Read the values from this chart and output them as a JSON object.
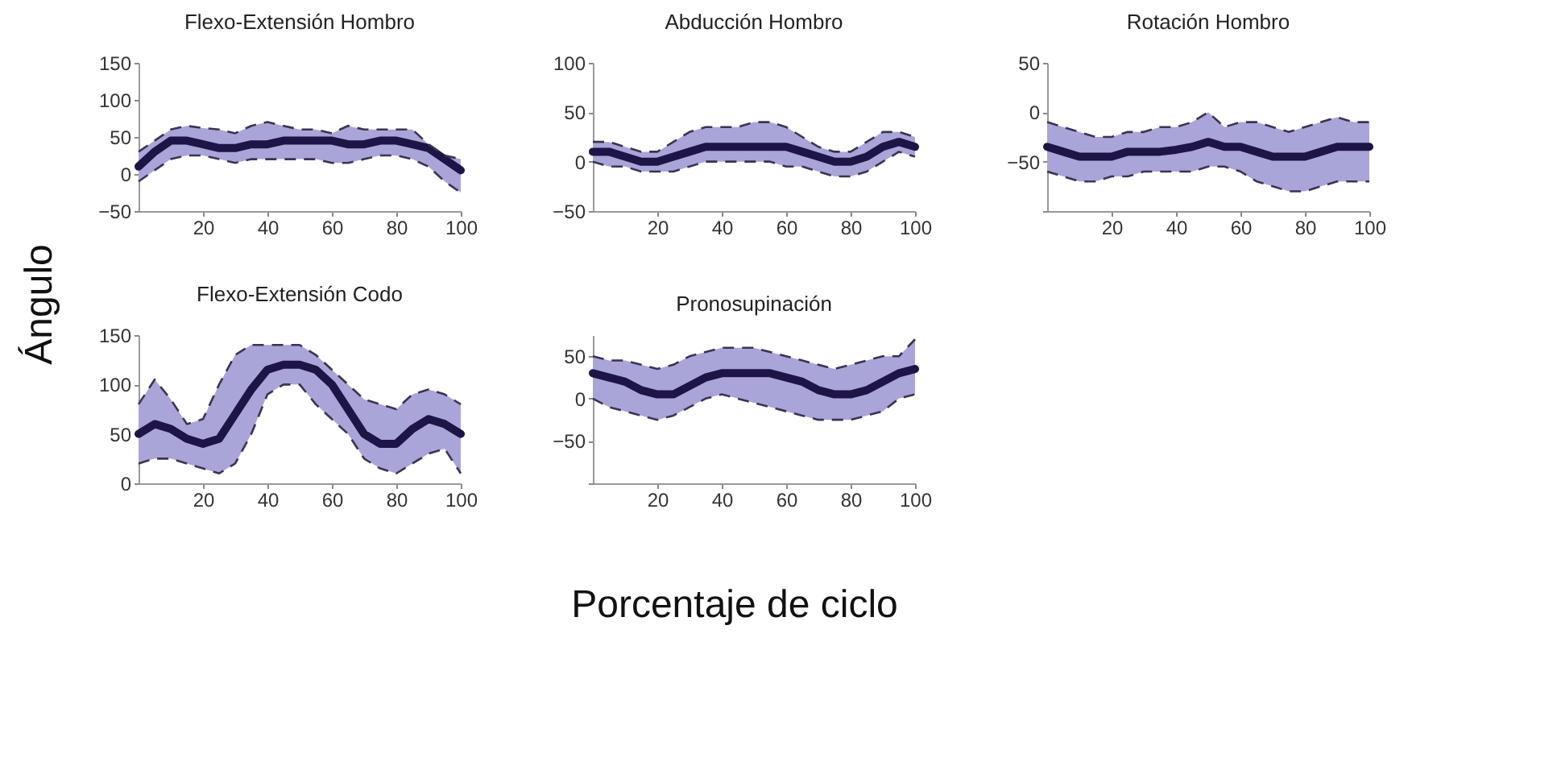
{
  "chart_data": [
    {
      "type": "line",
      "title": "Flexo-Extensión Hombro",
      "ylabel": "Ángulo",
      "x": [
        0,
        5,
        10,
        15,
        20,
        25,
        30,
        35,
        40,
        45,
        50,
        55,
        60,
        65,
        70,
        75,
        80,
        85,
        90,
        95,
        100
      ],
      "xlim": [
        0,
        100
      ],
      "xticks": [
        20,
        40,
        60,
        80,
        100
      ],
      "ylim": [
        -50,
        150
      ],
      "yticks": [
        -50,
        0,
        50,
        100,
        150
      ],
      "grid": false,
      "series": [
        {
          "color": "#1c1545",
          "values": [
            10,
            30,
            45,
            45,
            40,
            35,
            35,
            40,
            40,
            45,
            45,
            45,
            45,
            40,
            40,
            45,
            45,
            40,
            35,
            20,
            5
          ],
          "lower": [
            -10,
            5,
            20,
            25,
            25,
            20,
            15,
            20,
            20,
            20,
            20,
            20,
            15,
            15,
            20,
            25,
            25,
            20,
            10,
            -10,
            -25
          ],
          "upper": [
            30,
            45,
            60,
            65,
            62,
            60,
            55,
            65,
            70,
            65,
            60,
            60,
            55,
            65,
            60,
            60,
            60,
            60,
            40,
            25,
            20
          ]
        },
        {
          "color": "#3a3450",
          "line_style": "dashed",
          "values": [
            -10,
            5,
            20,
            25,
            25,
            20,
            15,
            20,
            20,
            20,
            20,
            20,
            15,
            15,
            20,
            25,
            25,
            20,
            10,
            -10,
            -25
          ]
        },
        {
          "color": "#3a3450",
          "line_style": "dashed",
          "values": [
            30,
            45,
            60,
            65,
            62,
            60,
            55,
            65,
            70,
            65,
            60,
            60,
            55,
            65,
            60,
            60,
            60,
            60,
            40,
            25,
            20
          ]
        }
      ]
    },
    {
      "type": "line",
      "title": "Abducción Hombro",
      "x": [
        0,
        5,
        10,
        15,
        20,
        25,
        30,
        35,
        40,
        45,
        50,
        55,
        60,
        65,
        70,
        75,
        80,
        85,
        90,
        95,
        100
      ],
      "xlim": [
        0,
        100
      ],
      "xticks": [
        20,
        40,
        60,
        80,
        100
      ],
      "ylim": [
        -50,
        100
      ],
      "yticks": [
        -50,
        0,
        50,
        100
      ],
      "grid": false,
      "series": [
        {
          "color": "#1c1545",
          "values": [
            10,
            10,
            5,
            0,
            0,
            5,
            10,
            15,
            15,
            15,
            15,
            15,
            15,
            10,
            5,
            0,
            0,
            5,
            15,
            20,
            15
          ],
          "lower": [
            0,
            -5,
            -5,
            -10,
            -10,
            -10,
            -5,
            0,
            0,
            0,
            0,
            0,
            -5,
            -5,
            -10,
            -15,
            -15,
            -10,
            0,
            10,
            5
          ],
          "upper": [
            20,
            20,
            15,
            10,
            10,
            20,
            30,
            35,
            35,
            35,
            40,
            40,
            35,
            25,
            15,
            10,
            10,
            20,
            30,
            30,
            25
          ]
        },
        {
          "color": "#3a3450",
          "line_style": "dashed",
          "values": [
            0,
            -5,
            -5,
            -10,
            -10,
            -10,
            -5,
            0,
            0,
            0,
            0,
            0,
            -5,
            -5,
            -10,
            -15,
            -15,
            -10,
            0,
            10,
            5
          ]
        },
        {
          "color": "#3a3450",
          "line_style": "dashed",
          "values": [
            20,
            20,
            15,
            10,
            10,
            20,
            30,
            35,
            35,
            35,
            40,
            40,
            35,
            25,
            15,
            10,
            10,
            20,
            30,
            30,
            25
          ]
        }
      ]
    },
    {
      "type": "line",
      "title": "Rotación Hombro",
      "x": [
        0,
        5,
        10,
        15,
        20,
        25,
        30,
        35,
        40,
        45,
        50,
        55,
        60,
        65,
        70,
        75,
        80,
        85,
        90,
        95,
        100
      ],
      "xlim": [
        0,
        100
      ],
      "xticks": [
        20,
        40,
        60,
        80,
        100
      ],
      "ylim": [
        -100,
        50
      ],
      "yticks": [
        {
          "value": -100,
          "label": null
        },
        -50,
        0,
        50
      ],
      "grid": false,
      "series": [
        {
          "color": "#1c1545",
          "values": [
            -35,
            -40,
            -45,
            -45,
            -45,
            -40,
            -40,
            -40,
            -38,
            -35,
            -30,
            -35,
            -35,
            -40,
            -45,
            -45,
            -45,
            -40,
            -35,
            -35,
            -35
          ],
          "lower": [
            -60,
            -65,
            -70,
            -70,
            -65,
            -65,
            -60,
            -60,
            -60,
            -60,
            -55,
            -55,
            -60,
            -70,
            -75,
            -80,
            -80,
            -75,
            -70,
            -70,
            -70
          ],
          "upper": [
            -10,
            -15,
            -20,
            -25,
            -25,
            -20,
            -20,
            -15,
            -15,
            -10,
            0,
            -15,
            -10,
            -10,
            -15,
            -20,
            -15,
            -10,
            -5,
            -10,
            -10
          ]
        },
        {
          "color": "#3a3450",
          "line_style": "dashed",
          "values": [
            -60,
            -65,
            -70,
            -70,
            -65,
            -65,
            -60,
            -60,
            -60,
            -60,
            -55,
            -55,
            -60,
            -70,
            -75,
            -80,
            -80,
            -75,
            -70,
            -70,
            -70
          ]
        },
        {
          "color": "#3a3450",
          "line_style": "dashed",
          "values": [
            -10,
            -15,
            -20,
            -25,
            -25,
            -20,
            -20,
            -15,
            -15,
            -10,
            0,
            -15,
            -10,
            -10,
            -15,
            -20,
            -15,
            -10,
            -5,
            -10,
            -10
          ]
        }
      ]
    },
    {
      "type": "line",
      "title": "Flexo-Extensión Codo",
      "x": [
        0,
        5,
        10,
        15,
        20,
        25,
        30,
        35,
        40,
        45,
        50,
        55,
        60,
        65,
        70,
        75,
        80,
        85,
        90,
        95,
        100
      ],
      "xlim": [
        0,
        100
      ],
      "xticks": [
        20,
        40,
        60,
        80,
        100
      ],
      "ylim": [
        0,
        150
      ],
      "yticks": [
        0,
        50,
        100,
        150
      ],
      "grid": false,
      "series": [
        {
          "color": "#1c1545",
          "values": [
            50,
            60,
            55,
            45,
            40,
            45,
            70,
            95,
            115,
            120,
            120,
            115,
            100,
            75,
            50,
            40,
            40,
            55,
            65,
            60,
            50
          ],
          "lower": [
            20,
            25,
            25,
            20,
            15,
            10,
            20,
            50,
            90,
            100,
            100,
            80,
            65,
            50,
            25,
            15,
            10,
            20,
            30,
            35,
            10
          ],
          "upper": [
            80,
            105,
            85,
            60,
            65,
            100,
            130,
            140,
            140,
            140,
            140,
            130,
            115,
            100,
            85,
            80,
            75,
            90,
            95,
            90,
            80
          ]
        },
        {
          "color": "#3a3450",
          "line_style": "dashed",
          "values": [
            20,
            25,
            25,
            20,
            15,
            10,
            20,
            50,
            90,
            100,
            100,
            80,
            65,
            50,
            25,
            15,
            10,
            20,
            30,
            35,
            10
          ]
        },
        {
          "color": "#3a3450",
          "line_style": "dashed",
          "values": [
            80,
            105,
            85,
            60,
            65,
            100,
            130,
            140,
            140,
            140,
            140,
            130,
            115,
            100,
            85,
            80,
            75,
            90,
            95,
            90,
            80
          ]
        }
      ]
    },
    {
      "type": "line",
      "title": "Pronosupinación",
      "xlabel": "Porcentaje de ciclo",
      "x": [
        0,
        5,
        10,
        15,
        20,
        25,
        30,
        35,
        40,
        45,
        50,
        55,
        60,
        65,
        70,
        75,
        80,
        85,
        90,
        95,
        100
      ],
      "xlim": [
        0,
        100
      ],
      "xticks": [
        20,
        40,
        60,
        80,
        100
      ],
      "ylim": [
        -100,
        75
      ],
      "yticks": [
        {
          "value": -100,
          "label": null
        },
        -50,
        0,
        50
      ],
      "grid": false,
      "series": [
        {
          "color": "#1c1545",
          "values": [
            30,
            25,
            20,
            10,
            5,
            5,
            15,
            25,
            30,
            30,
            30,
            30,
            25,
            20,
            10,
            5,
            5,
            10,
            20,
            30,
            35
          ],
          "lower": [
            0,
            -10,
            -15,
            -20,
            -25,
            -20,
            -10,
            0,
            5,
            0,
            -5,
            -10,
            -15,
            -20,
            -25,
            -25,
            -25,
            -20,
            -15,
            0,
            5
          ],
          "upper": [
            50,
            45,
            45,
            40,
            35,
            40,
            50,
            55,
            60,
            60,
            60,
            55,
            50,
            45,
            40,
            35,
            40,
            45,
            50,
            50,
            70
          ]
        },
        {
          "color": "#3a3450",
          "line_style": "dashed",
          "values": [
            0,
            -10,
            -15,
            -20,
            -25,
            -20,
            -10,
            0,
            5,
            0,
            -5,
            -10,
            -15,
            -20,
            -25,
            -25,
            -25,
            -20,
            -15,
            0,
            5
          ]
        },
        {
          "color": "#3a3450",
          "line_style": "dashed",
          "values": [
            50,
            45,
            45,
            40,
            35,
            40,
            50,
            55,
            60,
            60,
            60,
            55,
            50,
            45,
            40,
            35,
            40,
            45,
            50,
            50,
            70
          ]
        }
      ]
    }
  ]
}
